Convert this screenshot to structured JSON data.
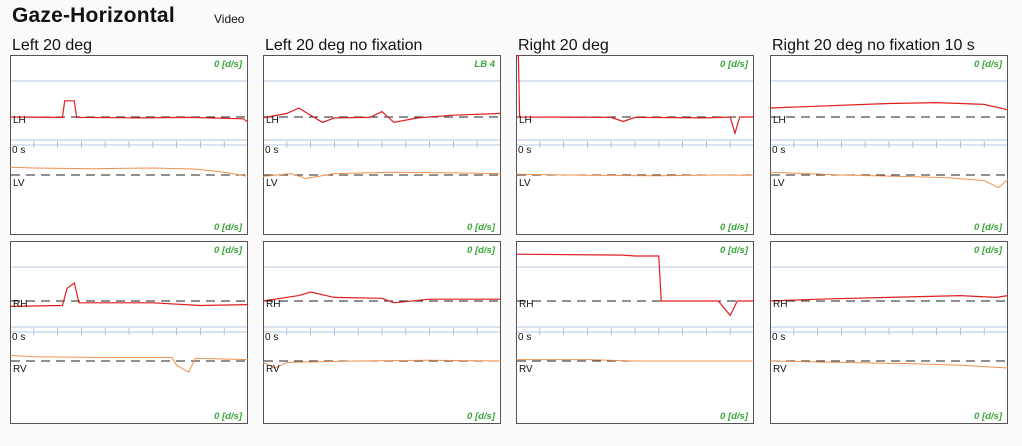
{
  "header": {
    "title": "Gaze-Horizontal",
    "subtitle": "Video"
  },
  "columns": [
    {
      "title": "Left 20 deg"
    },
    {
      "title": "Left 20 deg no fixation"
    },
    {
      "title": "Right 20 deg"
    },
    {
      "title": "Right 20 deg no fixation 10 s"
    }
  ],
  "chart_data": {
    "type": "line",
    "panels": [
      {
        "row": "top",
        "col": 0,
        "rate_top": "0 [d/s]",
        "rate_bottom": "0 [d/s]",
        "label_h": "LH",
        "label_time": "0 s",
        "label_v": "LV",
        "h": [
          [
            0,
            0
          ],
          [
            0.22,
            0.02
          ],
          [
            0.23,
            -0.9
          ],
          [
            0.27,
            -0.9
          ],
          [
            0.28,
            0.02
          ],
          [
            0.55,
            0.05
          ],
          [
            0.75,
            0.02
          ],
          [
            0.98,
            0.1
          ],
          [
            1,
            0.28
          ]
        ],
        "v": [
          [
            0,
            -0.55
          ],
          [
            0.1,
            -0.5
          ],
          [
            0.35,
            -0.45
          ],
          [
            0.6,
            -0.5
          ],
          [
            0.78,
            -0.42
          ],
          [
            0.9,
            -0.2
          ],
          [
            1,
            0.1
          ]
        ]
      },
      {
        "row": "top",
        "col": 1,
        "rate_top": "LB 4",
        "rate_bottom": "0 [d/s]",
        "label_h": "LH",
        "label_time": "0 s",
        "label_v": "LV",
        "h": [
          [
            0,
            0.05
          ],
          [
            0.1,
            -0.2
          ],
          [
            0.15,
            -0.5
          ],
          [
            0.25,
            0.3
          ],
          [
            0.3,
            0.05
          ],
          [
            0.45,
            0.02
          ],
          [
            0.5,
            -0.3
          ],
          [
            0.55,
            0.3
          ],
          [
            0.65,
            0.05
          ],
          [
            0.8,
            -0.1
          ],
          [
            1,
            -0.2
          ]
        ],
        "v": [
          [
            0,
            0.1
          ],
          [
            0.12,
            -0.1
          ],
          [
            0.18,
            0.25
          ],
          [
            0.3,
            -0.1
          ],
          [
            0.55,
            -0.2
          ],
          [
            0.8,
            -0.15
          ],
          [
            1,
            -0.1
          ]
        ]
      },
      {
        "row": "top",
        "col": 2,
        "rate_top": "0 [d/s]",
        "rate_bottom": "0 [d/s]",
        "label_h": "LH",
        "label_time": "0 s",
        "label_v": "LV",
        "h": [
          [
            0,
            -3.4
          ],
          [
            0.01,
            -3.4
          ],
          [
            0.015,
            0
          ],
          [
            0.4,
            0.02
          ],
          [
            0.45,
            0.25
          ],
          [
            0.5,
            0.02
          ],
          [
            0.8,
            0.05
          ],
          [
            0.9,
            0
          ],
          [
            0.92,
            0.9
          ],
          [
            0.94,
            0
          ],
          [
            1,
            0
          ]
        ],
        "v": [
          [
            0,
            -0.05
          ],
          [
            0.3,
            0.02
          ],
          [
            0.6,
            0.05
          ],
          [
            0.85,
            0
          ],
          [
            1,
            0.02
          ]
        ]
      },
      {
        "row": "top",
        "col": 3,
        "rate_top": "0 [d/s]",
        "rate_bottom": "0 [d/s]",
        "label_h": "LH",
        "label_time": "0 s",
        "label_v": "LV",
        "h": [
          [
            0,
            -0.5
          ],
          [
            0.2,
            -0.6
          ],
          [
            0.4,
            -0.7
          ],
          [
            0.5,
            -0.75
          ],
          [
            0.7,
            -0.8
          ],
          [
            0.9,
            -0.7
          ],
          [
            1,
            -0.4
          ]
        ],
        "v": [
          [
            0,
            -0.2
          ],
          [
            0.3,
            0
          ],
          [
            0.55,
            0.1
          ],
          [
            0.75,
            0.2
          ],
          [
            0.9,
            0.4
          ],
          [
            0.96,
            0.9
          ],
          [
            1,
            0.3
          ]
        ]
      },
      {
        "row": "bottom",
        "col": 0,
        "rate_top": "0 [d/s]",
        "rate_bottom": "0 [d/s]",
        "label_h": "RH",
        "label_time": "0 s",
        "label_v": "RV",
        "h": [
          [
            0,
            0.3
          ],
          [
            0.22,
            0.25
          ],
          [
            0.24,
            -0.7
          ],
          [
            0.27,
            -1.0
          ],
          [
            0.29,
            0.1
          ],
          [
            0.6,
            0.1
          ],
          [
            0.8,
            0.25
          ],
          [
            1,
            0.2
          ]
        ],
        "v": [
          [
            0,
            -0.4
          ],
          [
            0.1,
            -0.3
          ],
          [
            0.4,
            -0.25
          ],
          [
            0.68,
            -0.25
          ],
          [
            0.7,
            0.3
          ],
          [
            0.75,
            0.8
          ],
          [
            0.78,
            -0.2
          ],
          [
            1,
            -0.1
          ]
        ]
      },
      {
        "row": "bottom",
        "col": 1,
        "rate_top": "0 [d/s]",
        "rate_bottom": "0 [d/s]",
        "label_h": "RH",
        "label_time": "0 s",
        "label_v": "RV",
        "h": [
          [
            0,
            0
          ],
          [
            0.15,
            -0.3
          ],
          [
            0.2,
            -0.5
          ],
          [
            0.3,
            -0.2
          ],
          [
            0.5,
            -0.15
          ],
          [
            0.55,
            0.1
          ],
          [
            0.7,
            -0.1
          ],
          [
            1,
            -0.1
          ]
        ],
        "v": [
          [
            0,
            0.1
          ],
          [
            0.05,
            0.5
          ],
          [
            0.1,
            0.1
          ],
          [
            0.4,
            0
          ],
          [
            0.7,
            -0.05
          ],
          [
            1,
            0
          ]
        ]
      },
      {
        "row": "bottom",
        "col": 2,
        "rate_top": "0 [d/s]",
        "rate_bottom": "0 [d/s]",
        "label_h": "RH",
        "label_time": "0 s",
        "label_v": "RV",
        "h": [
          [
            0,
            -2.6
          ],
          [
            0.45,
            -2.55
          ],
          [
            0.5,
            -2.5
          ],
          [
            0.6,
            -2.5
          ],
          [
            0.61,
            0
          ],
          [
            0.85,
            0
          ],
          [
            0.9,
            0.8
          ],
          [
            0.93,
            0
          ],
          [
            1,
            0
          ]
        ],
        "v": [
          [
            0,
            -0.1
          ],
          [
            0.3,
            -0.1
          ],
          [
            0.5,
            0
          ],
          [
            0.8,
            0
          ],
          [
            1,
            0
          ]
        ]
      },
      {
        "row": "bottom",
        "col": 3,
        "rate_top": "0 [d/s]",
        "rate_bottom": "0 [d/s]",
        "label_h": "RH",
        "label_time": "0 s",
        "label_v": "RV",
        "h": [
          [
            0,
            0
          ],
          [
            0.2,
            -0.1
          ],
          [
            0.5,
            -0.2
          ],
          [
            0.8,
            -0.3
          ],
          [
            0.95,
            -0.2
          ],
          [
            1,
            -0.3
          ]
        ],
        "v": [
          [
            0,
            0
          ],
          [
            0.3,
            0.1
          ],
          [
            0.6,
            0.2
          ],
          [
            0.8,
            0.3
          ],
          [
            1,
            0.5
          ]
        ]
      }
    ]
  }
}
